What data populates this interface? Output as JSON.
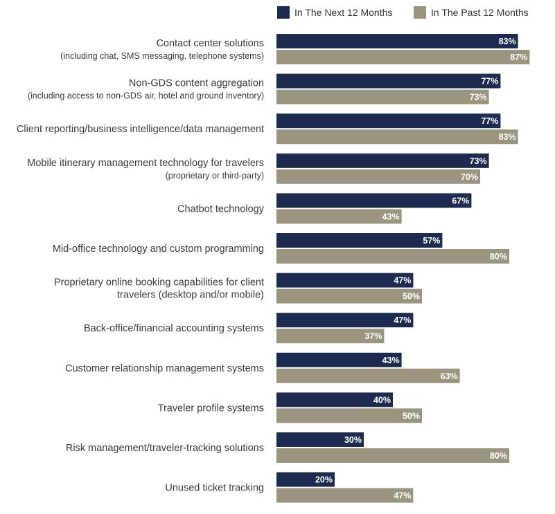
{
  "colors": {
    "next": "#1c2b4f",
    "past": "#9b9580"
  },
  "legend": {
    "next_label": "In The Next 12 Months",
    "past_label": "In The Past 12 Months"
  },
  "chart_data": {
    "type": "bar",
    "orientation": "horizontal",
    "title": "",
    "xlabel": "",
    "ylabel": "",
    "xlim": [
      0,
      100
    ],
    "grid": false,
    "legend_position": "top-right",
    "categories": [
      {
        "main": "Contact center solutions",
        "sub": "(including chat, SMS messaging, telephone systems)"
      },
      {
        "main": "Non-GDS content aggregation",
        "sub": "(including access to non-GDS air, hotel and ground inventory)"
      },
      {
        "main": "Client reporting/business intelligence/data management",
        "sub": ""
      },
      {
        "main": "Mobile itinerary management technology for travelers",
        "sub": "(proprietary or third-party)"
      },
      {
        "main": "Chatbot technology",
        "sub": ""
      },
      {
        "main": "Mid-office technology and custom programming",
        "sub": ""
      },
      {
        "main": "Proprietary online booking capabilities for client",
        "sub": "travelers (desktop and/or mobile)",
        "sub_style": "mixed"
      },
      {
        "main": "Back-office/financial accounting systems",
        "sub": ""
      },
      {
        "main": "Customer relationship management systems",
        "sub": ""
      },
      {
        "main": "Traveler profile systems",
        "sub": ""
      },
      {
        "main": "Risk management/traveler-tracking solutions",
        "sub": ""
      },
      {
        "main": "Unused ticket tracking",
        "sub": ""
      }
    ],
    "series": [
      {
        "name": "In The Next 12 Months",
        "values": [
          83,
          77,
          77,
          73,
          67,
          57,
          47,
          47,
          43,
          40,
          30,
          20
        ]
      },
      {
        "name": "In The Past 12 Months",
        "values": [
          87,
          73,
          83,
          70,
          43,
          80,
          50,
          37,
          63,
          50,
          80,
          47
        ]
      }
    ],
    "value_suffix": "%"
  }
}
